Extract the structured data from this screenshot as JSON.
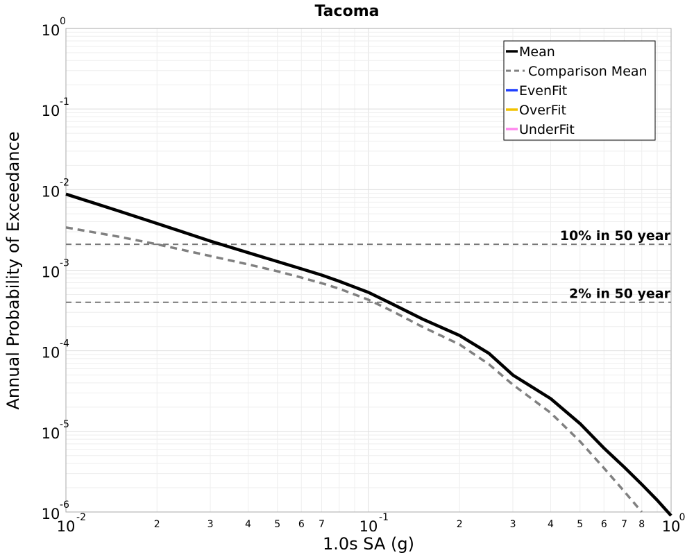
{
  "chart_data": {
    "type": "line",
    "title": "Tacoma",
    "xlabel": "1.0s SA (g)",
    "ylabel": "Annual Probability of Exceedance",
    "xscale": "log",
    "yscale": "log",
    "xlim": [
      0.01,
      1
    ],
    "ylim": [
      1e-06,
      1
    ],
    "grid": true,
    "x_major_ticks": [
      {
        "value": 0.01,
        "base": "10",
        "exp": "-2"
      },
      {
        "value": 0.1,
        "base": "10",
        "exp": "-1"
      },
      {
        "value": 1,
        "base": "10",
        "exp": "0"
      }
    ],
    "x_minor_ticks": [
      {
        "value": 0.02,
        "label": "2"
      },
      {
        "value": 0.03,
        "label": "3"
      },
      {
        "value": 0.04,
        "label": "4"
      },
      {
        "value": 0.05,
        "label": "5"
      },
      {
        "value": 0.06,
        "label": "6"
      },
      {
        "value": 0.07,
        "label": "7"
      },
      {
        "value": 0.2,
        "label": "2"
      },
      {
        "value": 0.3,
        "label": "3"
      },
      {
        "value": 0.4,
        "label": "4"
      },
      {
        "value": 0.5,
        "label": "5"
      },
      {
        "value": 0.6,
        "label": "6"
      },
      {
        "value": 0.7,
        "label": "7"
      },
      {
        "value": 0.8,
        "label": "8"
      }
    ],
    "y_major_ticks": [
      {
        "value": 1,
        "base": "10",
        "exp": "0"
      },
      {
        "value": 0.1,
        "base": "10",
        "exp": "-1"
      },
      {
        "value": 0.01,
        "base": "10",
        "exp": "-2"
      },
      {
        "value": 0.001,
        "base": "10",
        "exp": "-3"
      },
      {
        "value": 0.0001,
        "base": "10",
        "exp": "-4"
      },
      {
        "value": 1e-05,
        "base": "10",
        "exp": "-5"
      },
      {
        "value": 1e-06,
        "base": "10",
        "exp": "-6"
      }
    ],
    "series": [
      {
        "name": "Mean",
        "color": "#000000",
        "style": "solid",
        "x": [
          0.01,
          0.015,
          0.02,
          0.03,
          0.04,
          0.05,
          0.06,
          0.07,
          0.08,
          0.1,
          0.12,
          0.15,
          0.2,
          0.25,
          0.3,
          0.4,
          0.5,
          0.6,
          0.7,
          0.8,
          0.9,
          1.0
        ],
        "y": [
          0.0088,
          0.0054,
          0.0038,
          0.0023,
          0.00165,
          0.00128,
          0.00104,
          0.00087,
          0.00073,
          0.00053,
          0.00038,
          0.00025,
          0.000155,
          9.3e-05,
          5e-05,
          2.55e-05,
          1.25e-05,
          6.2e-06,
          3.6e-06,
          2.2e-06,
          1.4e-06,
          9e-07
        ]
      },
      {
        "name": "Comparison Mean",
        "color": "#808080",
        "style": "dashed",
        "x": [
          0.01,
          0.015,
          0.02,
          0.03,
          0.04,
          0.05,
          0.06,
          0.07,
          0.08,
          0.1,
          0.12,
          0.15,
          0.2,
          0.25,
          0.3,
          0.4,
          0.5,
          0.6,
          0.7,
          0.8
        ],
        "y": [
          0.0034,
          0.0026,
          0.0021,
          0.0015,
          0.00118,
          0.00097,
          0.00081,
          0.00069,
          0.00059,
          0.00043,
          0.00031,
          0.0002,
          0.00012,
          6.8e-05,
          3.8e-05,
          1.7e-05,
          7.5e-06,
          3.5e-06,
          1.8e-06,
          1e-06
        ]
      }
    ],
    "reference_lines": [
      {
        "label": "10% in 50 year",
        "y": 0.0021
      },
      {
        "label": "2% in 50 year",
        "y": 0.0004
      }
    ],
    "legend": {
      "position": "top-right",
      "entries": [
        {
          "label": "Mean",
          "color": "#000000",
          "style": "solid"
        },
        {
          "label": "Comparison Mean",
          "color": "#808080",
          "style": "dashed"
        },
        {
          "label": "EvenFit",
          "color": "#1f3fff",
          "style": "solid"
        },
        {
          "label": "OverFit",
          "color": "#f2c200",
          "style": "solid"
        },
        {
          "label": "UnderFit",
          "color": "#ff88ee",
          "style": "solid"
        }
      ]
    }
  }
}
